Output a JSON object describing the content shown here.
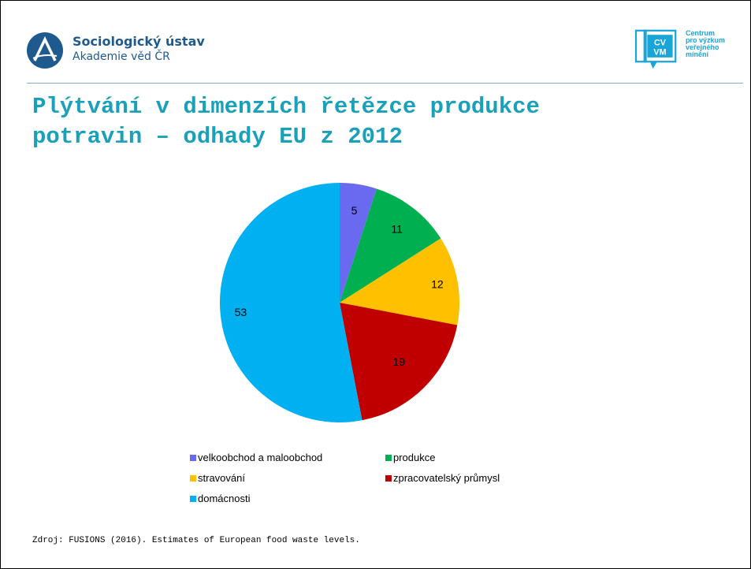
{
  "header": {
    "institution_name": "Sociologický ústav",
    "institution_sub": "Akademie věd ČR",
    "partner_logo_letters": [
      "CV",
      "VM"
    ],
    "partner_name_lines": [
      "Centrum",
      "pro výzkum",
      "veřejného",
      "mínění"
    ]
  },
  "slide": {
    "title_lines": [
      "Plýtvání v dimenzích řetězce produkce",
      "potravin – odhady EU z 2012"
    ],
    "source": "Zdroj: FUSIONS (2016). Estimates of European food waste levels."
  },
  "colors": {
    "title": "#1aa0b8",
    "brand_blue": "#1f5a8e",
    "cvvm_blue": "#1aa5d8"
  },
  "chart_data": {
    "type": "pie",
    "title": "",
    "slices": [
      {
        "label": "velkoobchod a maloobchod",
        "value": 5,
        "color": "#6a6af0"
      },
      {
        "label": "produkce",
        "value": 11,
        "color": "#00b050"
      },
      {
        "label": "stravování",
        "value": 12,
        "color": "#ffc000"
      },
      {
        "label": "zpracovatelský průmysl",
        "value": 19,
        "color": "#c00000"
      },
      {
        "label": "domácnosti",
        "value": 53,
        "color": "#00b0f0"
      }
    ],
    "legend_position": "bottom",
    "start_angle": "12 o'clock",
    "direction": "clockwise"
  }
}
